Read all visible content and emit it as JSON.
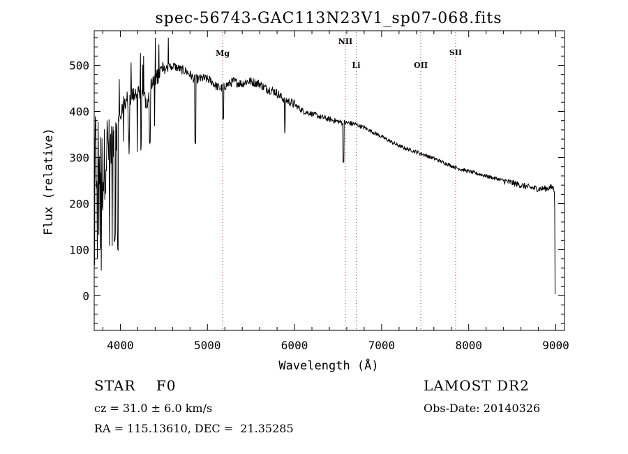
{
  "chart_data": {
    "type": "line",
    "title": "spec-56743-GAC113N23V1_sp07-068.fits",
    "xlabel": "Wavelength (Å)",
    "ylabel": "Flux (relative)",
    "xlim": [
      3700,
      9100
    ],
    "ylim": [
      -75,
      575
    ],
    "xticks": [
      4000,
      5000,
      6000,
      7000,
      8000,
      9000
    ],
    "yticks": [
      0,
      100,
      200,
      300,
      400,
      500
    ],
    "grid": false,
    "line_markers": [
      {
        "label": "Mg",
        "x": 5175
      },
      {
        "label": "NII",
        "x": 6584
      },
      {
        "label": "Li",
        "x": 6708
      },
      {
        "label": "OII",
        "x": 7450
      },
      {
        "label": "SII",
        "x": 7850
      }
    ],
    "spectrum_anchors": {
      "x": [
        3700,
        3750,
        3800,
        3850,
        3900,
        3950,
        4000,
        4050,
        4100,
        4150,
        4200,
        4250,
        4300,
        4350,
        4400,
        4450,
        4500,
        4550,
        4600,
        4650,
        4700,
        4750,
        4800,
        4850,
        4900,
        4950,
        5000,
        5050,
        5100,
        5150,
        5200,
        5250,
        5300,
        5350,
        5400,
        5450,
        5500,
        5550,
        5600,
        5650,
        5700,
        5750,
        5800,
        5850,
        5900,
        5950,
        6000,
        6100,
        6200,
        6300,
        6400,
        6500,
        6550,
        6600,
        6650,
        6700,
        6800,
        6900,
        7000,
        7100,
        7200,
        7300,
        7400,
        7500,
        7600,
        7700,
        7800,
        7900,
        8000,
        8100,
        8200,
        8300,
        8400,
        8500,
        8600,
        8700,
        8800,
        8900,
        8960,
        8985,
        9000
      ],
      "y": [
        280,
        330,
        260,
        330,
        310,
        350,
        400,
        420,
        430,
        440,
        435,
        440,
        420,
        450,
        470,
        485,
        490,
        495,
        500,
        495,
        490,
        488,
        480,
        470,
        470,
        472,
        470,
        465,
        455,
        450,
        455,
        460,
        465,
        462,
        460,
        465,
        465,
        462,
        460,
        452,
        448,
        445,
        440,
        430,
        425,
        420,
        415,
        400,
        395,
        388,
        383,
        378,
        376,
        375,
        374,
        372,
        365,
        355,
        345,
        335,
        325,
        318,
        312,
        305,
        298,
        290,
        282,
        275,
        270,
        265,
        260,
        255,
        250,
        245,
        240,
        235,
        232,
        233,
        236,
        230,
        5
      ]
    },
    "absorption_features": [
      {
        "x": 4861,
        "y": 330
      },
      {
        "x": 4340,
        "y": 335
      },
      {
        "x": 4101,
        "y": 350
      },
      {
        "x": 3970,
        "y": 100
      },
      {
        "x": 3934,
        "y": 120
      },
      {
        "x": 6563,
        "y": 290
      },
      {
        "x": 5890,
        "y": 355
      },
      {
        "x": 5180,
        "y": 380
      }
    ],
    "series": [
      {
        "values_ref": "spectrum_anchors"
      }
    ]
  },
  "footer": {
    "object_class": "STAR    F0",
    "survey": "LAMOST DR2",
    "redshift": "cz = 31.0 ± 6.0 km/s",
    "obs_date": "Obs-Date: 20140326",
    "coords": "RA = 115.13610, DEC =  21.35285"
  }
}
